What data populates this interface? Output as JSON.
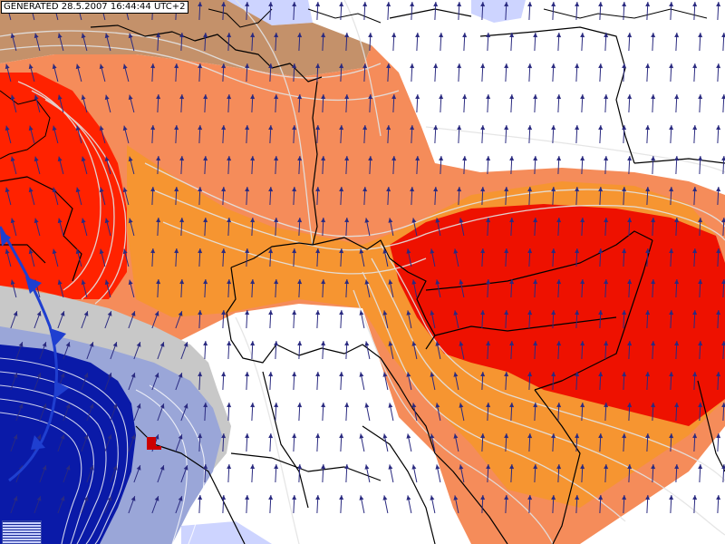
{
  "stamp": {
    "text": "GENERATED 28.5.2007 16:44:44 UTC+2"
  },
  "colors": {
    "brown": "#c4916a",
    "salmon": "#f58c5a",
    "orange": "#f6962a",
    "red": "#ff2200",
    "deep_red": "#ee0000",
    "grey": "#c8c8c8",
    "light_blue": "#9aa6d8",
    "pale_blue": "#cdd4ff",
    "dark_blue": "#0a1aa8",
    "front": "#1f3fd0",
    "contour": "#d8d8d8",
    "arrow": "#2a2a80",
    "border": "#000000"
  },
  "icons": {
    "wind_arrow": "arrow-icon",
    "front_triangle": "cold-front-triangle-icon",
    "low_marker": "low-pressure-marker-icon"
  }
}
